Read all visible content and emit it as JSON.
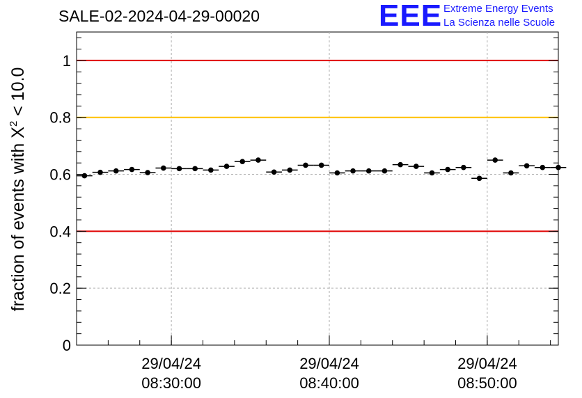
{
  "header": {
    "title": "SALE-02-2024-04-29-00020",
    "logo_mark": "EEE",
    "logo_line1": "Extreme Energy Events",
    "logo_line2": "La Scienza nelle Scuole"
  },
  "colors": {
    "red_line": "#e00000",
    "yellow_line": "#ffc000",
    "logo_blue": "#1a1aff",
    "marker": "#000000",
    "grid": "#b0b0b0"
  },
  "chart_data": {
    "type": "scatter",
    "title": "SALE-02-2024-04-29-00020",
    "ylabel_main": "fraction of events with ",
    "ylabel_chi": "X",
    "ylabel_exp": "2",
    "ylabel_tail": " < 10.0",
    "ylim": [
      0,
      1.1
    ],
    "y_ticks": [
      0,
      0.2,
      0.4,
      0.6,
      0.8,
      1
    ],
    "y_tick_labels": [
      "0",
      "0.2",
      "0.4",
      "0.6",
      "0.8",
      "1"
    ],
    "xlim_minutes": [
      0,
      30.5
    ],
    "x_ticks": [
      {
        "minute": 6,
        "date": "29/04/24",
        "time": "08:30:00"
      },
      {
        "minute": 16,
        "date": "29/04/24",
        "time": "08:40:00"
      },
      {
        "minute": 26,
        "date": "29/04/24",
        "time": "08:50:00"
      }
    ],
    "bin_width_minutes": 1,
    "values": [
      0.595,
      0.607,
      0.612,
      0.617,
      0.606,
      0.622,
      0.62,
      0.62,
      0.615,
      0.628,
      0.645,
      0.65,
      0.608,
      0.615,
      0.632,
      0.632,
      0.605,
      0.612,
      0.612,
      0.612,
      0.634,
      0.628,
      0.605,
      0.617,
      0.624,
      0.586,
      0.65,
      0.605,
      0.63,
      0.624,
      0.624
    ],
    "errors": 0.008,
    "reference_lines": [
      {
        "y": 1.0,
        "color": "#e00000"
      },
      {
        "y": 0.8,
        "color": "#ffc000"
      },
      {
        "y": 0.4,
        "color": "#e00000"
      }
    ],
    "grid": true
  }
}
